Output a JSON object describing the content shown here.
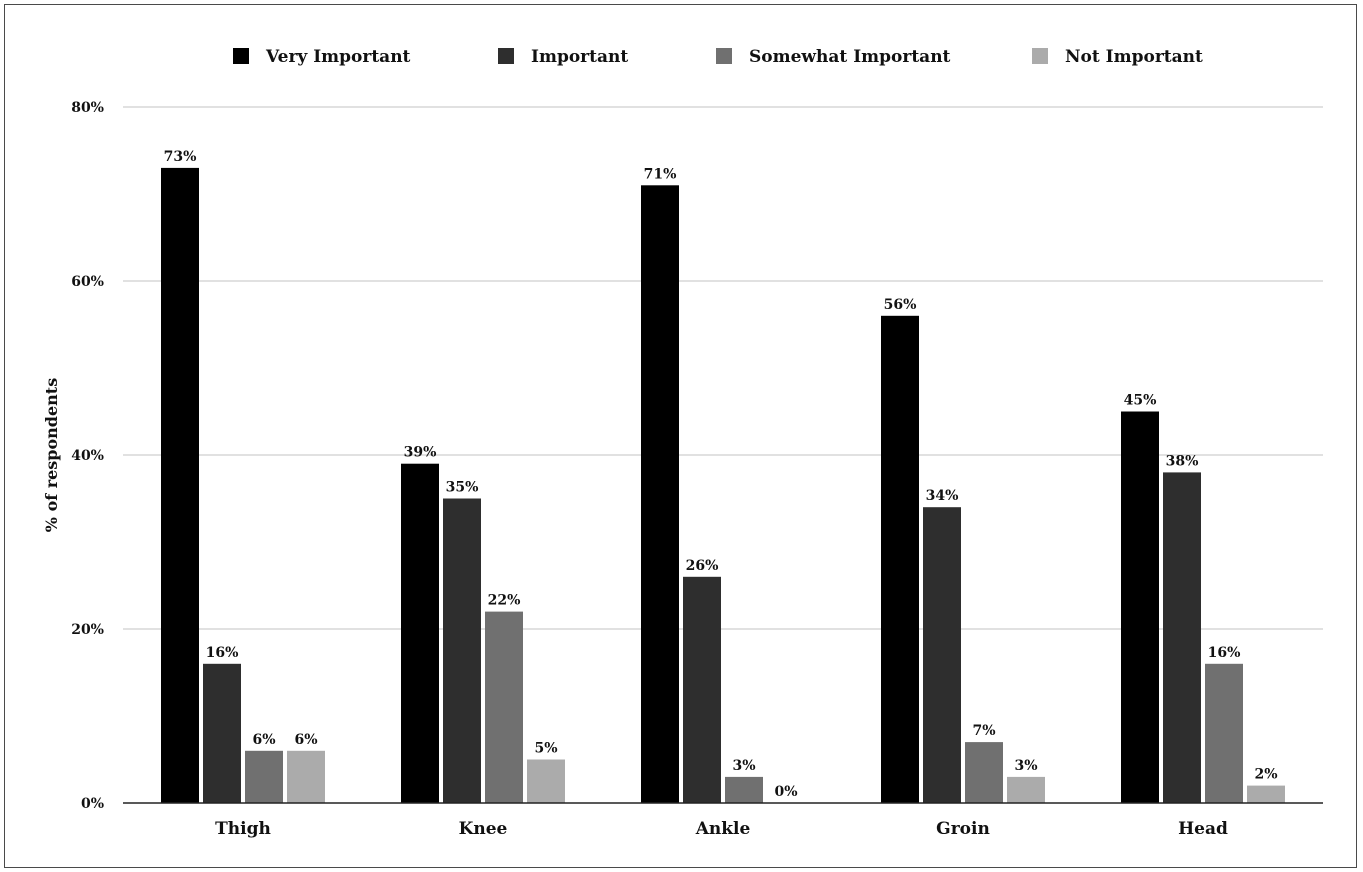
{
  "chart_data": {
    "type": "bar",
    "ylabel": "% of respondents",
    "xlabel": "",
    "ylim": [
      0,
      80
    ],
    "yticks": [
      "0%",
      "20%",
      "40%",
      "60%",
      "80%"
    ],
    "grid": true,
    "legend_position": "top",
    "categories": [
      "Thigh",
      "Knee",
      "Ankle",
      "Groin",
      "Head"
    ],
    "series": [
      {
        "name": "Very Important",
        "color": "#000000",
        "values": [
          73,
          39,
          71,
          56,
          45
        ],
        "labels": [
          "73%",
          "39%",
          "71%",
          "56%",
          "45%"
        ]
      },
      {
        "name": "Important",
        "color": "#2e2e2e",
        "values": [
          16,
          35,
          26,
          34,
          38
        ],
        "labels": [
          "16%",
          "35%",
          "26%",
          "34%",
          "38%"
        ]
      },
      {
        "name": "Somewhat Important",
        "color": "#707070",
        "values": [
          6,
          22,
          3,
          7,
          16
        ],
        "labels": [
          "6%",
          "22%",
          "3%",
          "7%",
          "16%"
        ]
      },
      {
        "name": "Not Important",
        "color": "#ababab",
        "values": [
          6,
          5,
          0,
          3,
          2
        ],
        "labels": [
          "6%",
          "5%",
          "0%",
          "3%",
          "2%"
        ]
      }
    ]
  }
}
